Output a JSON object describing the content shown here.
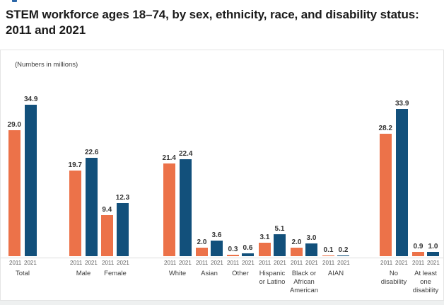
{
  "page": {
    "title": "STEM workforce ages 18–74, by sex, ethnicity, race, and disability status: 2011 and 2021",
    "units_note": "(Numbers in millions)"
  },
  "chart_data": {
    "type": "bar",
    "title": "STEM workforce ages 18–74, by sex, ethnicity, race, and disability status: 2011 and 2021",
    "subtitle_note": "(Numbers in millions)",
    "categories": [
      "Total",
      "Male",
      "Female",
      "White",
      "Asian",
      "Other",
      "Hispanic or Latino",
      "Black or African American",
      "AIAN",
      "No disability",
      "At least one disability"
    ],
    "category_sections": [
      "total",
      "sex",
      "sex",
      "race",
      "race",
      "race",
      "ethnicity",
      "race",
      "race",
      "disability",
      "disability"
    ],
    "series": [
      {
        "name": "2011",
        "color": "#EC7249",
        "values": [
          29.0,
          19.7,
          9.4,
          21.4,
          2.0,
          0.3,
          3.1,
          2.0,
          0.1,
          28.2,
          0.9
        ]
      },
      {
        "name": "2021",
        "color": "#12507B",
        "values": [
          34.9,
          22.6,
          12.3,
          22.4,
          3.6,
          0.6,
          5.1,
          3.0,
          0.2,
          33.9,
          1.0
        ]
      }
    ],
    "ylim": [
      0,
      36
    ],
    "grid": false,
    "legend": "none",
    "value_labels": "one decimal above each bar",
    "x_tick_labels_per_bar": [
      "2011",
      "2021"
    ],
    "accent_colors": {
      "orange_2011": "#EC7249",
      "blue_2021": "#12507B"
    }
  }
}
